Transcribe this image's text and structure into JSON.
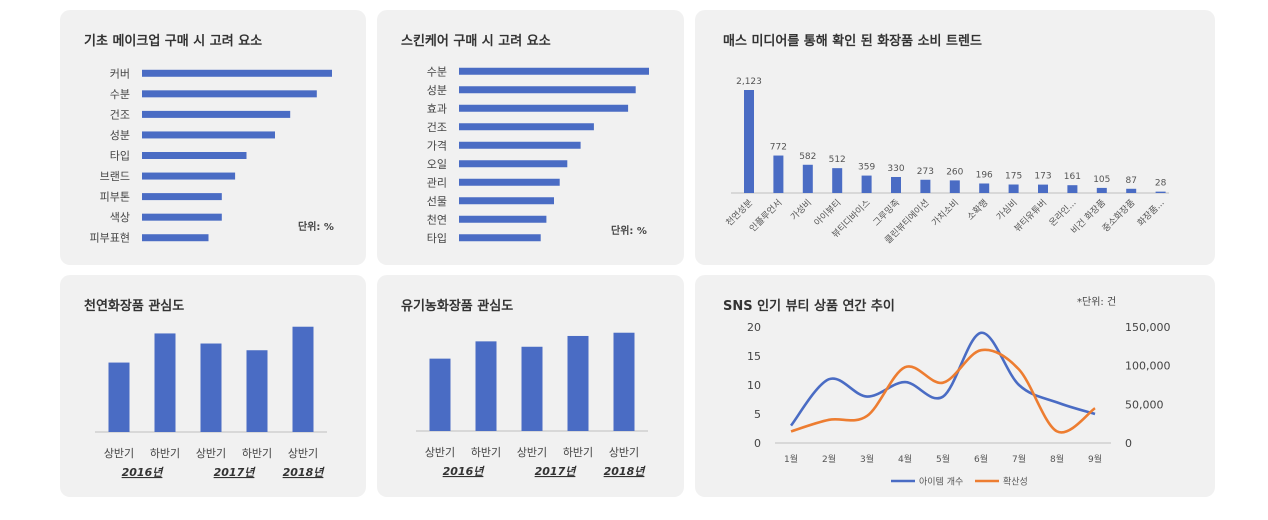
{
  "colors": {
    "bar": "#4a6cc4",
    "series1": "#4a6cc4",
    "series2": "#ed7d31",
    "panel_bg": "#f1f1f1"
  },
  "chart_data": [
    {
      "type": "bar",
      "orientation": "horizontal",
      "title": "기초 메이크업 구매 시 고려 요소",
      "unit_label": "단위: %",
      "categories": [
        "커버",
        "수분",
        "건조",
        "성분",
        "타입",
        "브랜드",
        "피부톤",
        "색상",
        "피부표현"
      ],
      "values": [
        100,
        92,
        78,
        70,
        55,
        49,
        42,
        42,
        35
      ]
    },
    {
      "type": "bar",
      "orientation": "horizontal",
      "title": "스킨케어 구매 시 고려 요소",
      "unit_label": "단위: %",
      "categories": [
        "수분",
        "성분",
        "효과",
        "건조",
        "가격",
        "오일",
        "관리",
        "선물",
        "천연",
        "타입"
      ],
      "values": [
        100,
        93,
        89,
        71,
        64,
        57,
        53,
        50,
        46,
        43
      ]
    },
    {
      "type": "bar",
      "title": "매스 미디어를 통해 확인 된 화장품 소비 트렌드",
      "categories": [
        "천연성분",
        "인플루언서",
        "가성비",
        "아이뷰티",
        "뷰티디바이스",
        "그루밍족",
        "클린뷰티에이션",
        "가치소비",
        "소확행",
        "가심비",
        "뷰티유튜버",
        "온라인...",
        "비건 화장품",
        "중소화장품",
        "화장품..."
      ],
      "values": [
        2123,
        772,
        582,
        512,
        359,
        330,
        273,
        260,
        196,
        175,
        173,
        161,
        105,
        87,
        28
      ],
      "value_labels": [
        "2,123",
        "772",
        "582",
        "512",
        "359",
        "330",
        "273",
        "260",
        "196",
        "175",
        "173",
        "161",
        "105",
        "87",
        "28"
      ]
    },
    {
      "type": "bar",
      "title": "천연화장품 관심도",
      "categories": [
        "상반기",
        "하반기",
        "상반기",
        "하반기",
        "상반기"
      ],
      "values": [
        62,
        88,
        79,
        73,
        94
      ],
      "groups": [
        {
          "label": "2016년",
          "span": [
            0,
            1
          ]
        },
        {
          "label": "2017년",
          "span": [
            2,
            3
          ]
        },
        {
          "label": "2018년",
          "span": [
            4,
            4
          ]
        }
      ]
    },
    {
      "type": "bar",
      "title": "유기농화장품 관심도",
      "categories": [
        "상반기",
        "하반기",
        "상반기",
        "하반기",
        "상반기"
      ],
      "values": [
        67,
        83,
        78,
        88,
        91
      ],
      "groups": [
        {
          "label": "2016년",
          "span": [
            0,
            1
          ]
        },
        {
          "label": "2017년",
          "span": [
            2,
            3
          ]
        },
        {
          "label": "2018년",
          "span": [
            4,
            4
          ]
        }
      ]
    },
    {
      "type": "line",
      "title": "SNS 인기 뷰티 상품 연간 추이",
      "unit_label": "*단위: 건",
      "x": [
        "1월",
        "2월",
        "3월",
        "4월",
        "5월",
        "6월",
        "7월",
        "8월",
        "9월"
      ],
      "y_left": {
        "range": [
          0,
          20
        ],
        "ticks": [
          "0",
          "5",
          "10",
          "15",
          "20"
        ]
      },
      "y_right": {
        "range": [
          0,
          150000
        ],
        "ticks": [
          "0",
          "50,000",
          "100,000",
          "150,000"
        ]
      },
      "series": [
        {
          "name": "아이템 개수",
          "axis": "left",
          "values": [
            3,
            11,
            8,
            10.5,
            8,
            19,
            10,
            7,
            5
          ]
        },
        {
          "name": "확산성",
          "axis": "right",
          "values": [
            15000,
            30000,
            35000,
            98000,
            78000,
            120000,
            95000,
            15000,
            45000
          ]
        }
      ]
    }
  ]
}
